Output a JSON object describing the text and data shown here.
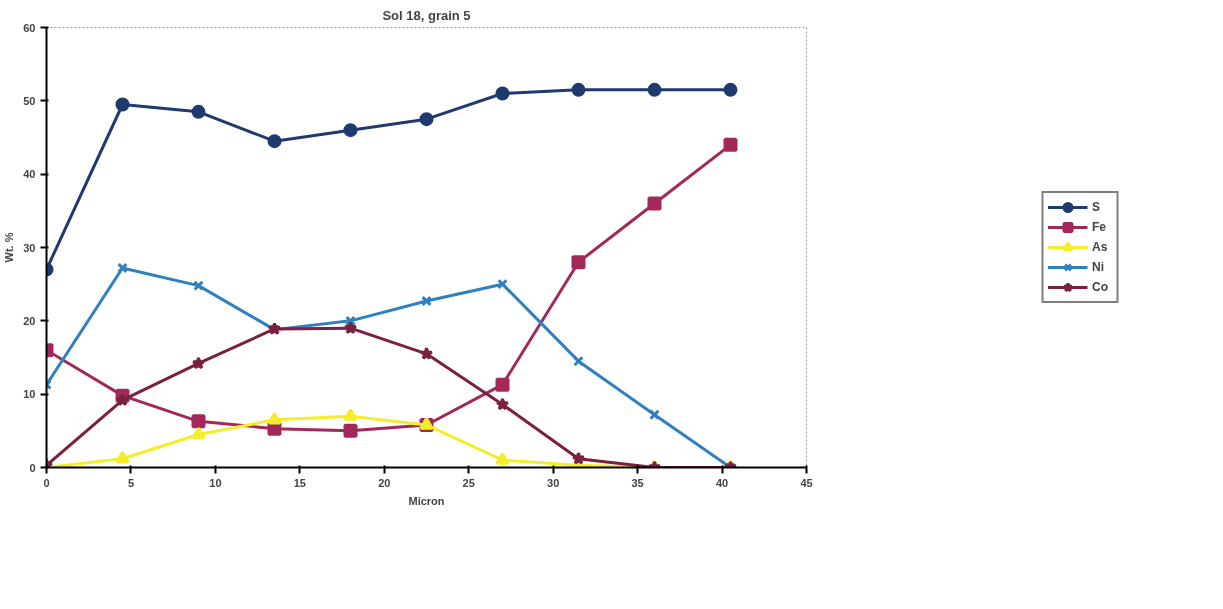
{
  "chart_data": {
    "type": "line",
    "title": "Sol 18, grain 5",
    "xlabel": "Micron",
    "ylabel": "Wt. %",
    "x": [
      0,
      4.5,
      9,
      13.5,
      18,
      22.5,
      27,
      31.5,
      36,
      40.5
    ],
    "xlim": [
      0,
      45
    ],
    "xticks": [
      0,
      5,
      10,
      15,
      20,
      25,
      30,
      35,
      40,
      45
    ],
    "ylim": [
      0,
      60
    ],
    "yticks": [
      0,
      10,
      20,
      30,
      40,
      50,
      60
    ],
    "grid": false,
    "legend": "right",
    "series": [
      {
        "name": "S",
        "color": "#1f3a6e",
        "marker": "circle",
        "values": [
          27,
          49.5,
          48.5,
          44.5,
          46,
          47.5,
          51,
          51.5,
          51.5,
          51.5
        ]
      },
      {
        "name": "Fe",
        "color": "#a3285a",
        "marker": "square",
        "values": [
          16,
          9.8,
          6.3,
          5.3,
          5,
          5.8,
          11.3,
          28,
          36,
          44
        ]
      },
      {
        "name": "As",
        "color": "#f2ef2a",
        "marker": "triangle",
        "values": [
          0,
          1.2,
          4.5,
          6.5,
          7,
          5.8,
          1,
          0.3,
          0,
          0
        ]
      },
      {
        "name": "Ni",
        "color": "#2f80c0",
        "marker": "cross",
        "values": [
          11.3,
          27.2,
          24.8,
          18.8,
          20,
          22.7,
          25,
          14.5,
          7.2,
          0
        ]
      },
      {
        "name": "Co",
        "color": "#7a2040",
        "marker": "star",
        "values": [
          0.3,
          9.2,
          14.2,
          18.9,
          19,
          15.5,
          8.6,
          1.2,
          0,
          0
        ]
      }
    ]
  }
}
